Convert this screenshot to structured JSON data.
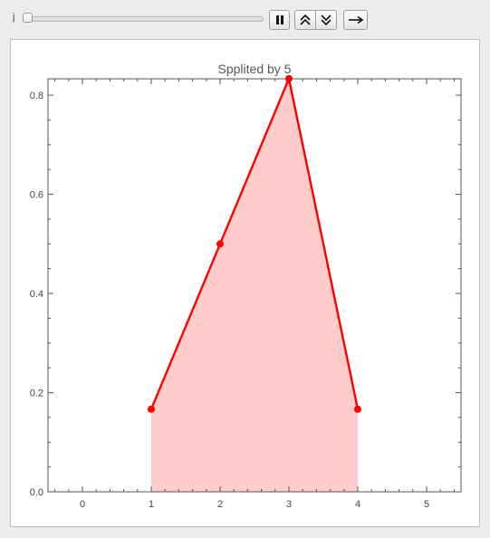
{
  "controls": {
    "slider_label": "j",
    "slider_value": 0,
    "buttons": [
      {
        "name": "pause",
        "icon": "pause-icon"
      },
      {
        "name": "faster",
        "icon": "double-chevron-up-icon"
      },
      {
        "name": "slower",
        "icon": "double-chevron-down-icon"
      },
      {
        "name": "step",
        "icon": "arrow-right-icon"
      }
    ]
  },
  "chart_data": {
    "type": "area",
    "title": "Spplited by 5",
    "xlabel": "",
    "ylabel": "",
    "xlim": [
      -0.5,
      5.5
    ],
    "ylim": [
      0,
      0.833
    ],
    "x_ticks": [
      0,
      1,
      2,
      3,
      4,
      5
    ],
    "x_tick_labels": [
      "0",
      "1",
      "2",
      "3",
      "4",
      "5"
    ],
    "y_ticks": [
      0,
      0.2,
      0.4,
      0.6,
      0.8
    ],
    "y_tick_labels": [
      "0.0",
      "0.2",
      "0.4",
      "0.6",
      "0.8"
    ],
    "grid": false,
    "series": [
      {
        "x": [
          1,
          2,
          3,
          4
        ],
        "y": [
          0.1667,
          0.5,
          0.8333,
          0.1667
        ],
        "line_color": "#ff0000",
        "fill_color": "#ffcccc",
        "markers": true
      }
    ]
  }
}
